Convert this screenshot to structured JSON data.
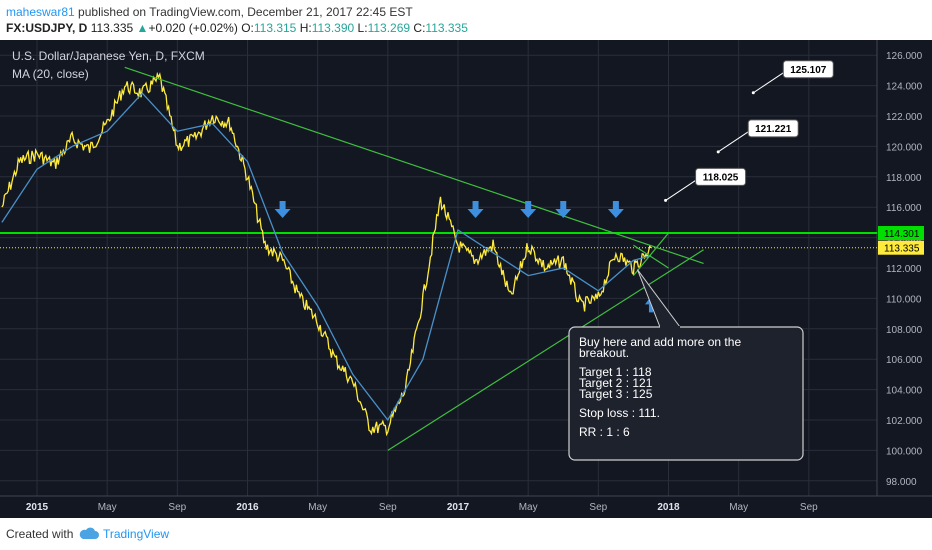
{
  "header": {
    "author": "maheswar81",
    "published": "published on TradingView.com, December 21, 2017 22:45 EST",
    "symbol": "FX:USDJPY, D",
    "last": "113.335",
    "change": "+0.020 (+0.02%)",
    "open_label": "O:",
    "open": "113.315",
    "high_label": "H:",
    "high": "113.390",
    "low_label": "L:",
    "low": "113.269",
    "close_label": "C:",
    "close": "113.335"
  },
  "footer": {
    "created_with": "Created with",
    "brand": "TradingView"
  },
  "colors": {
    "background": "#131722",
    "grid": "#2a2e39",
    "price": "#ffeb3b",
    "ma": "#4a90c8",
    "trend": "#3fbf3f",
    "resistance": "#00e000",
    "arrow": "#3d8fe0",
    "text": "#d1d4dc"
  },
  "chart_data": {
    "type": "line",
    "title": "U.S. Dollar/Japanese Yen, D, FXCM",
    "indicator": "MA (20, close)",
    "ylim": [
      97,
      127
    ],
    "y_ticks": [
      "126.000",
      "124.000",
      "122.000",
      "120.000",
      "118.000",
      "116.000",
      "114.000",
      "112.000",
      "110.000",
      "108.000",
      "106.000",
      "104.000",
      "102.000",
      "100.000",
      "98.000"
    ],
    "x_ticks": [
      "2015",
      "May",
      "Sep",
      "2016",
      "May",
      "Sep",
      "2017",
      "May",
      "Sep",
      "2018",
      "May",
      "Sep"
    ],
    "x_tick_dates": [
      "2015-01",
      "2015-05",
      "2015-09",
      "2016-01",
      "2016-05",
      "2016-09",
      "2017-01",
      "2017-05",
      "2017-09",
      "2018-01",
      "2018-05",
      "2018-09"
    ],
    "series": [
      {
        "kind": "price",
        "x": [
          "2014-11",
          "2014-12",
          "2015-01",
          "2015-02",
          "2015-03",
          "2015-04",
          "2015-05",
          "2015-06",
          "2015-07",
          "2015-08",
          "2015-09",
          "2015-10",
          "2015-11",
          "2015-12",
          "2016-01",
          "2016-02",
          "2016-03",
          "2016-04",
          "2016-05",
          "2016-06",
          "2016-07",
          "2016-08",
          "2016-09",
          "2016-10",
          "2016-11",
          "2016-12",
          "2017-01",
          "2017-02",
          "2017-03",
          "2017-04",
          "2017-05",
          "2017-06",
          "2017-07",
          "2017-08",
          "2017-09",
          "2017-10",
          "2017-11",
          "2017-12"
        ],
        "values": [
          116,
          119,
          119.5,
          118.8,
          120.5,
          119.8,
          121.5,
          124,
          123.5,
          124.5,
          120,
          120.5,
          122,
          121.5,
          118,
          113.5,
          112.5,
          110,
          108.5,
          106,
          104.5,
          101.5,
          101.5,
          104,
          110,
          116.5,
          113.5,
          112.5,
          113.5,
          110,
          113.5,
          112,
          112.5,
          109.5,
          110,
          113,
          112,
          113.335
        ]
      },
      {
        "kind": "ma",
        "x": [
          "2014-11",
          "2015-01",
          "2015-03",
          "2015-05",
          "2015-07",
          "2015-09",
          "2015-11",
          "2016-01",
          "2016-03",
          "2016-05",
          "2016-07",
          "2016-09",
          "2016-11",
          "2017-01",
          "2017-03",
          "2017-05",
          "2017-07",
          "2017-09",
          "2017-11",
          "2017-12"
        ],
        "values": [
          115,
          118.5,
          120,
          121,
          123.5,
          121,
          121.5,
          119,
          113,
          109.5,
          105,
          102,
          106,
          114.5,
          113,
          111.5,
          112,
          110.5,
          112.5,
          112.8
        ]
      }
    ],
    "trendlines": [
      {
        "kind": "descending",
        "from": [
          "2015-06",
          125.2
        ],
        "to": [
          "2018-03",
          112.3
        ]
      },
      {
        "kind": "ascending",
        "from": [
          "2016-09",
          100
        ],
        "to": [
          "2018-03",
          113.2
        ]
      },
      {
        "kind": "wedge-lower",
        "from": [
          "2017-11",
          111.5
        ],
        "to": [
          "2018-01",
          114.3
        ]
      },
      {
        "kind": "wedge-upper",
        "from": [
          "2017-11",
          113.5
        ],
        "to": [
          "2018-01",
          112
        ]
      }
    ],
    "horizontal_lines": [
      {
        "value": 114.301,
        "label": "114.301",
        "color": "#00e000"
      },
      {
        "value": 113.335,
        "label": "113.335",
        "color": "#ffeb3b",
        "style": "dotted"
      }
    ],
    "resistance_touch_dates": [
      "2016-03",
      "2017-02",
      "2017-05",
      "2017-07",
      "2017-10"
    ],
    "targets": [
      {
        "value": 118.025,
        "label": "118.025",
        "date": "2018-03"
      },
      {
        "value": 121.221,
        "label": "121.221",
        "date": "2018-06"
      },
      {
        "value": 125.107,
        "label": "125.107",
        "date": "2018-08"
      }
    ],
    "note": {
      "lines": [
        "Buy here and add more on the",
        "breakout.",
        "",
        "Target 1 : 118",
        "Target 2 : 121",
        "Target 3 : 125",
        "",
        "Stop loss : 111.",
        "",
        "RR : 1 : 6"
      ],
      "anchor": [
        "2017-11",
        111.5
      ]
    }
  }
}
